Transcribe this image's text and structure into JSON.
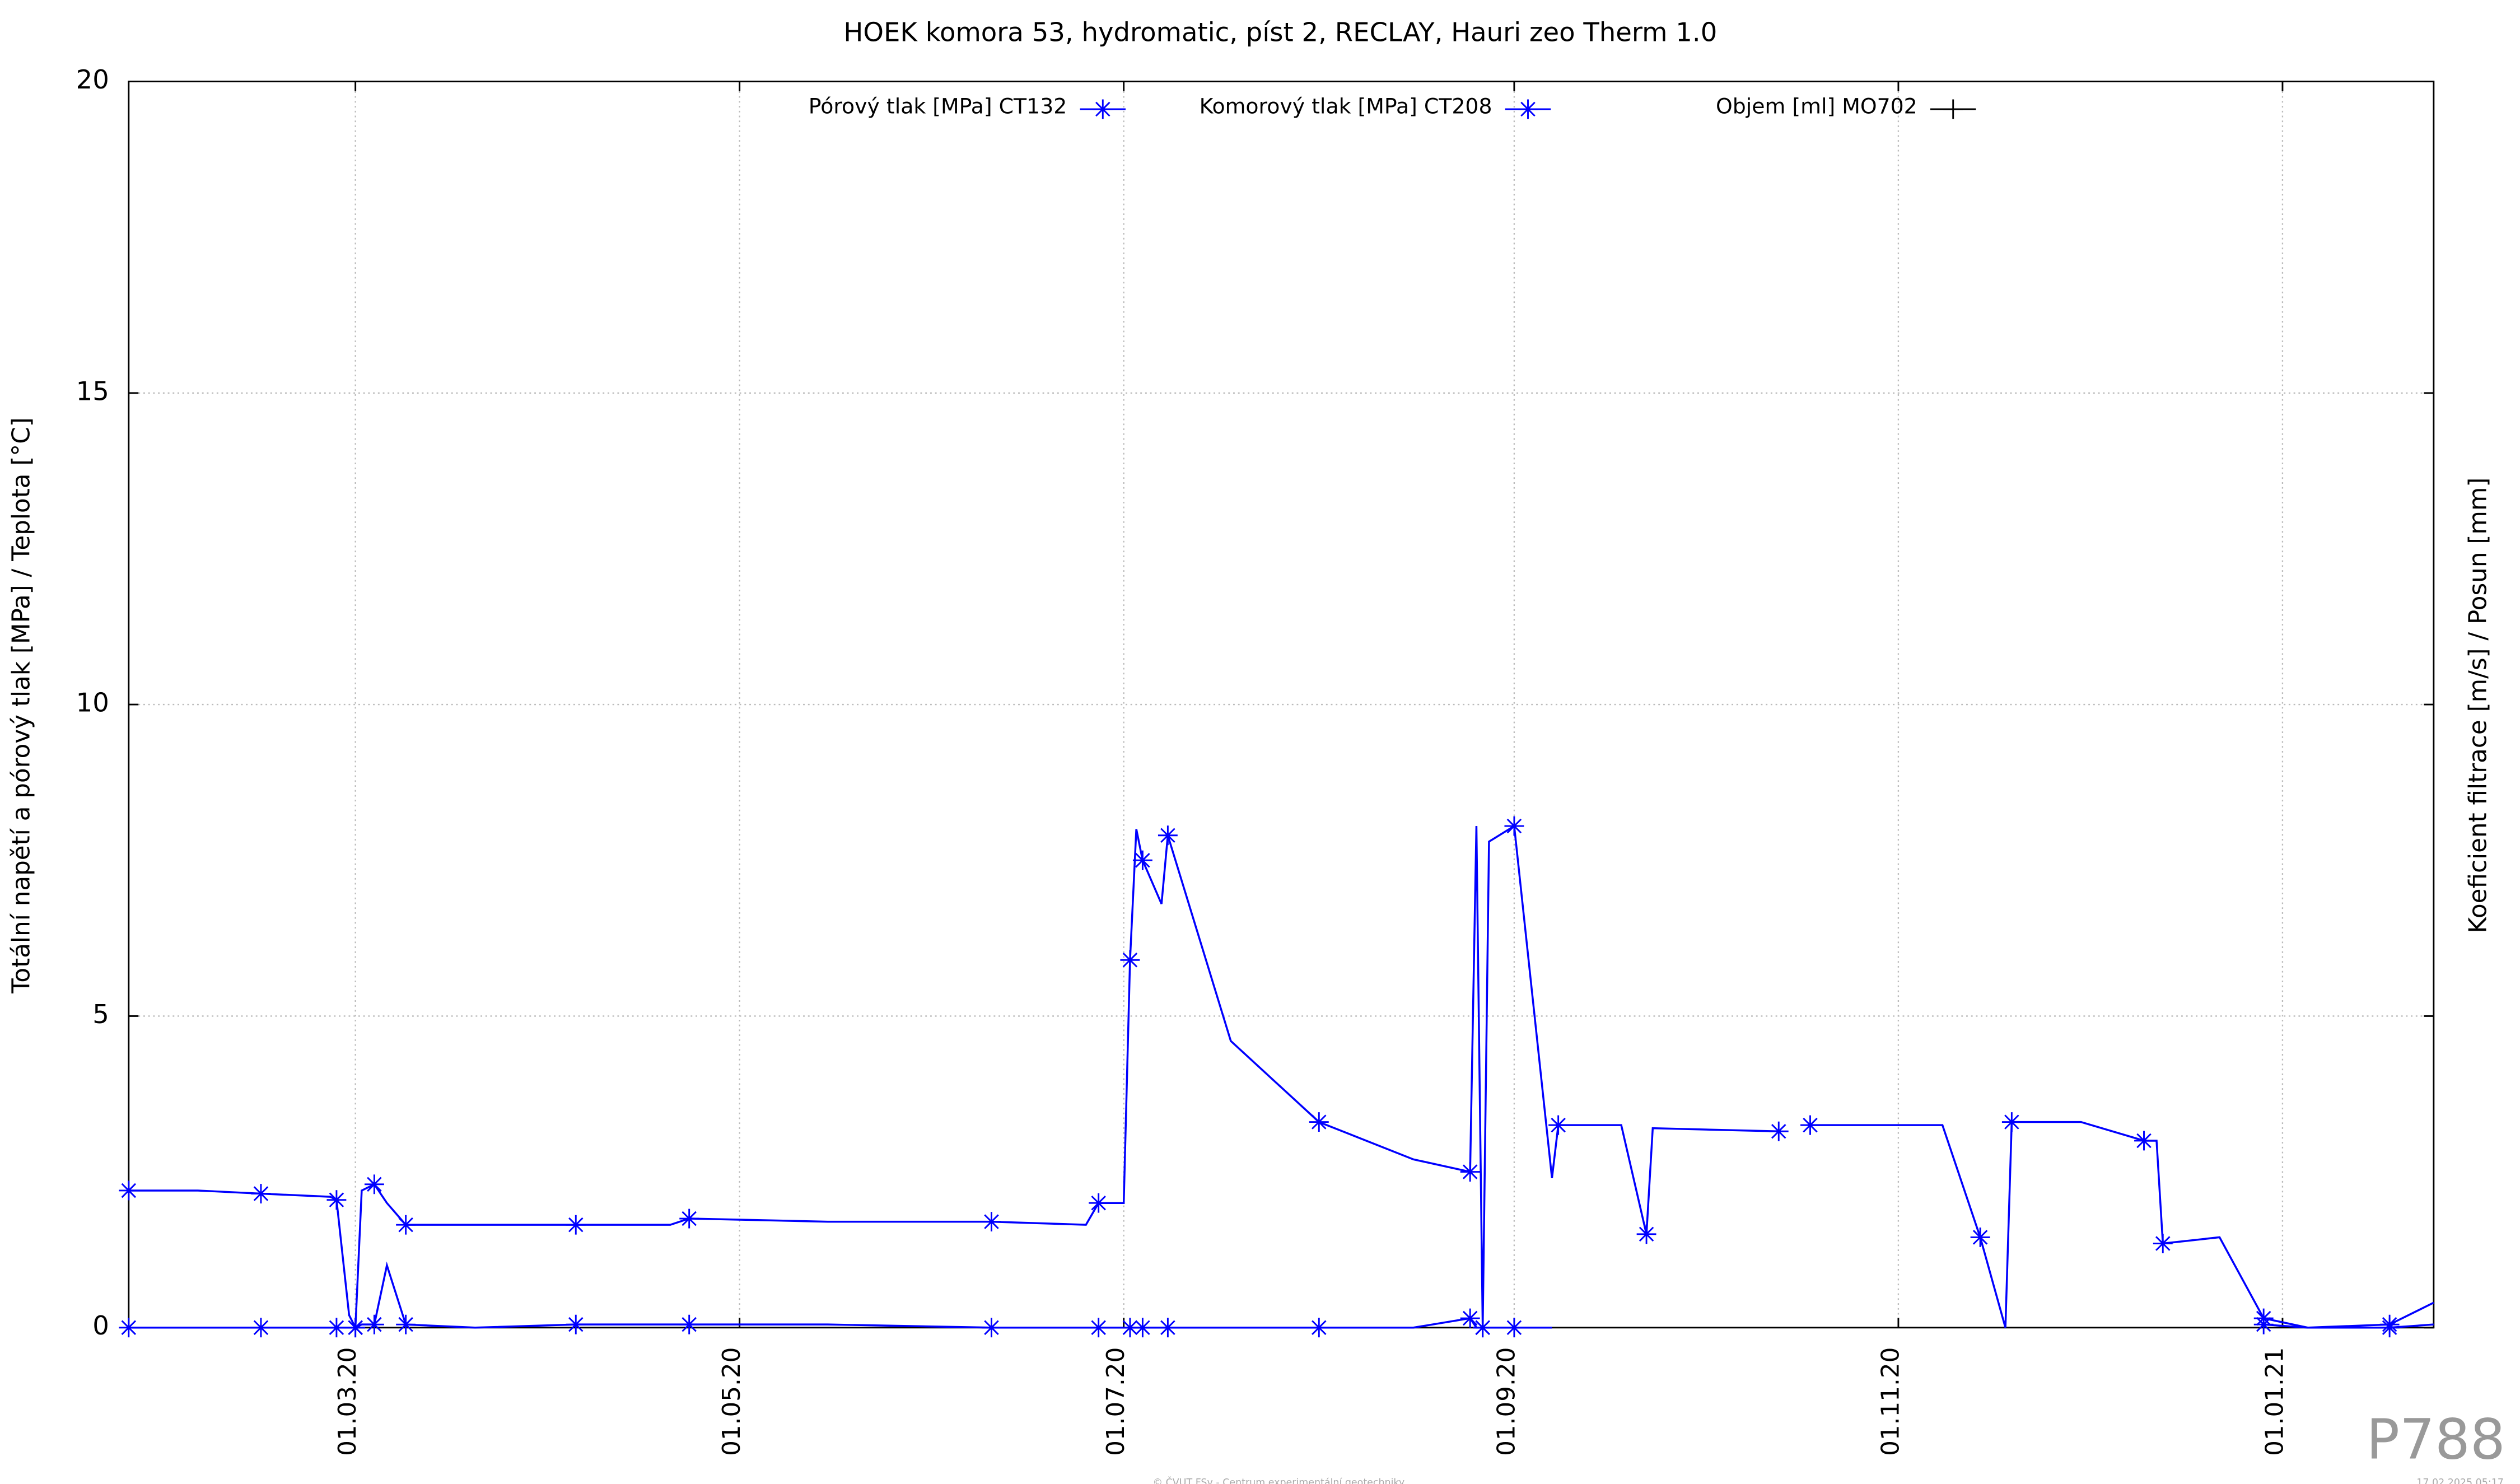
{
  "chart_data": {
    "type": "line",
    "title": "HOEK komora 53, hydromatic, píst 2, RECLAY, Hauri zeo Therm 1.0",
    "ylabel": "Totální napětí a pórový tlak [MPa] / Teplota [°C]",
    "y2label": "Koeficient filtrace [m/s] / Posun [mm]",
    "watermark": "P788",
    "footer": "© ČVUT FSv - Centrum experimentální geotechniky",
    "timestamp": "17.02.2025 05:17",
    "grid": true,
    "legend": "top",
    "xlim": [
      "2020-01-25",
      "2021-01-25"
    ],
    "xticks": [
      {
        "value": "2020-03-01",
        "label": "01.03.20"
      },
      {
        "value": "2020-05-01",
        "label": "01.05.20"
      },
      {
        "value": "2020-07-01",
        "label": "01.07.20"
      },
      {
        "value": "2020-09-01",
        "label": "01.09.20"
      },
      {
        "value": "2020-11-01",
        "label": "01.11.20"
      },
      {
        "value": "2021-01-01",
        "label": "01.01.21"
      }
    ],
    "ylim": [
      0,
      20
    ],
    "yticks": [
      0,
      5,
      10,
      15,
      20
    ],
    "x": [
      "2020-01-25",
      "2020-02-05",
      "2020-02-15",
      "2020-02-26",
      "2020-02-27",
      "2020-02-29",
      "2020-03-01",
      "2020-03-02",
      "2020-03-04",
      "2020-03-06",
      "2020-03-09",
      "2020-03-20",
      "2020-04-05",
      "2020-04-20",
      "2020-04-23",
      "2020-05-15",
      "2020-06-10",
      "2020-06-25",
      "2020-06-27",
      "2020-07-01",
      "2020-07-02",
      "2020-07-03",
      "2020-07-04",
      "2020-07-07",
      "2020-07-08",
      "2020-07-18",
      "2020-08-01",
      "2020-08-16",
      "2020-08-25",
      "2020-08-26",
      "2020-08-27",
      "2020-08-28",
      "2020-09-01",
      "2020-09-07",
      "2020-09-08",
      "2020-09-18",
      "2020-09-22",
      "2020-09-23",
      "2020-10-13",
      "2020-10-15",
      "2020-10-18",
      "2020-11-08",
      "2020-11-14",
      "2020-11-18",
      "2020-11-19",
      "2020-11-30",
      "2020-12-10",
      "2020-12-12",
      "2020-12-13",
      "2020-12-22",
      "2020-12-29",
      "2021-01-05",
      "2021-01-18",
      "2021-01-25"
    ],
    "series": [
      {
        "name": "Pórový tlak [MPa] CT132",
        "color": "#0000ff",
        "marker": "star",
        "values": [
          0,
          0,
          0,
          0,
          0,
          0,
          0,
          0.05,
          0.05,
          1.0,
          0.05,
          0,
          0.05,
          0.05,
          0.05,
          0.05,
          0,
          0,
          0,
          0,
          0,
          0,
          0,
          0,
          0,
          0,
          0,
          0,
          0.15,
          0,
          0,
          0,
          0,
          0,
          null,
          null,
          null,
          null,
          null,
          null,
          null,
          null,
          null,
          null,
          null,
          null,
          null,
          null,
          null,
          null,
          0.05,
          0,
          0,
          0.05
        ]
      },
      {
        "name": "Komorový tlak [MPa] CT208",
        "color": "#0000ff",
        "marker": "star",
        "values": [
          2.2,
          2.2,
          2.15,
          2.1,
          2.05,
          0.2,
          0,
          2.2,
          2.3,
          2.0,
          1.65,
          1.65,
          1.65,
          1.65,
          1.75,
          1.7,
          1.7,
          1.65,
          2.0,
          2.0,
          5.9,
          8.0,
          7.5,
          6.8,
          7.9,
          4.6,
          3.3,
          2.7,
          2.5,
          8.05,
          0,
          7.8,
          8.05,
          2.4,
          3.25,
          3.25,
          1.5,
          3.2,
          3.15,
          null,
          3.25,
          3.25,
          1.45,
          0,
          3.3,
          3.3,
          3.0,
          3.0,
          1.35,
          1.45,
          0.15,
          0,
          0.05,
          0.4
        ]
      },
      {
        "name": "Objem [ml] MO702",
        "color": "#000000",
        "marker": "plus",
        "values": [
          null,
          null,
          null,
          null,
          null,
          null,
          null,
          null,
          null,
          null,
          null,
          null,
          null,
          null,
          null,
          null,
          null,
          null,
          null,
          null,
          null,
          null,
          null,
          null,
          null,
          null,
          null,
          null,
          null,
          null,
          null,
          null,
          null,
          null,
          null,
          null,
          null,
          null,
          null,
          null,
          null,
          null,
          null,
          null,
          null,
          null,
          null,
          null,
          null,
          null,
          null,
          null,
          null,
          null
        ]
      }
    ]
  }
}
